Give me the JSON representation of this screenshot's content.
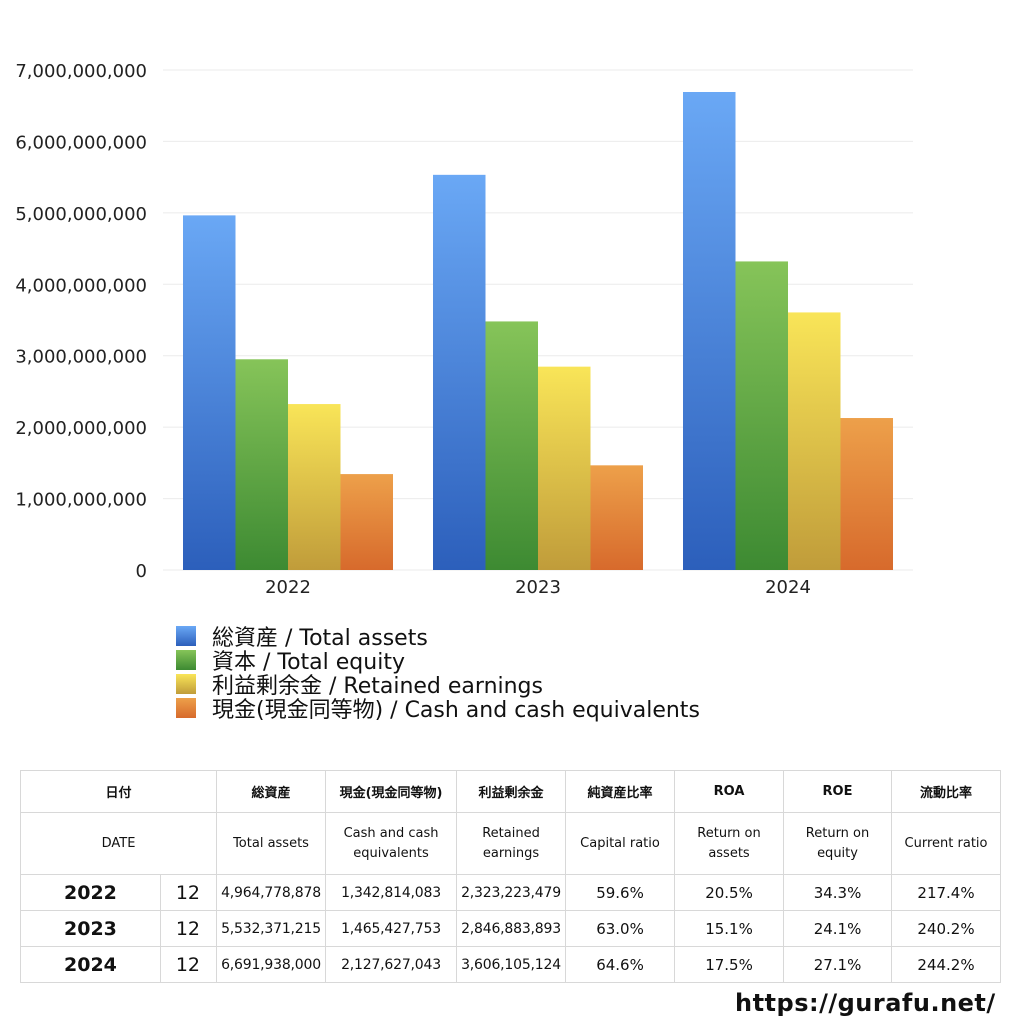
{
  "chart_data": {
    "type": "bar",
    "categories": [
      "2022",
      "2023",
      "2024"
    ],
    "series": [
      {
        "name": "総資産 / Total assets",
        "values": [
          4964778878,
          5532371215,
          6691938000
        ]
      },
      {
        "name": "資本 / Total equity",
        "values": [
          2950000000,
          3480000000,
          4320000000
        ]
      },
      {
        "name": "利益剰余金 / Retained earnings",
        "values": [
          2323223479,
          2846883893,
          3606105124
        ]
      },
      {
        "name": "現金(現金同等物) / Cash and cash equivalents",
        "values": [
          1342814083,
          1465427753,
          2127627043
        ]
      }
    ],
    "series_colors": [
      {
        "top": "#6aa8f5",
        "bottom": "#2c5fbb",
        "swatch": "#3b7fe0"
      },
      {
        "top": "#86c459",
        "bottom": "#3d8a32",
        "swatch": "#5aa640"
      },
      {
        "top": "#f9e558",
        "bottom": "#c09c3a",
        "swatch": "#ecd04a"
      },
      {
        "top": "#eda04a",
        "bottom": "#d76a2c",
        "swatch": "#e08038"
      }
    ],
    "y_ticks": [
      "0",
      "1,000,000,000",
      "2,000,000,000",
      "3,000,000,000",
      "4,000,000,000",
      "5,000,000,000",
      "6,000,000,000",
      "7,000,000,000"
    ],
    "ylim": [
      0,
      7000000000
    ],
    "grid": true,
    "legend_position": "bottom-left"
  },
  "table": {
    "header_jp": [
      "日付",
      "総資産",
      "現金(現金同等物)",
      "利益剰余金",
      "純資産比率",
      "ROA",
      "ROE",
      "流動比率"
    ],
    "header_en": [
      "DATE",
      "Total assets",
      "Cash and cash equivalents",
      "Retained earnings",
      "Capital ratio",
      "Return on assets",
      "Return on equity",
      "Current ratio"
    ],
    "rows": [
      {
        "year": "2022",
        "month": "12",
        "total_assets": "4,964,778,878",
        "cash": "1,342,814,083",
        "retained": "2,323,223,479",
        "capital_ratio": "59.6%",
        "roa": "20.5%",
        "roe": "34.3%",
        "current_ratio": "217.4%"
      },
      {
        "year": "2023",
        "month": "12",
        "total_assets": "5,532,371,215",
        "cash": "1,465,427,753",
        "retained": "2,846,883,893",
        "capital_ratio": "63.0%",
        "roa": "15.1%",
        "roe": "24.1%",
        "current_ratio": "240.2%"
      },
      {
        "year": "2024",
        "month": "12",
        "total_assets": "6,691,938,000",
        "cash": "2,127,627,043",
        "retained": "3,606,105,124",
        "capital_ratio": "64.6%",
        "roa": "17.5%",
        "roe": "27.1%",
        "current_ratio": "244.2%"
      }
    ]
  },
  "site_url": "https://gurafu.net/"
}
